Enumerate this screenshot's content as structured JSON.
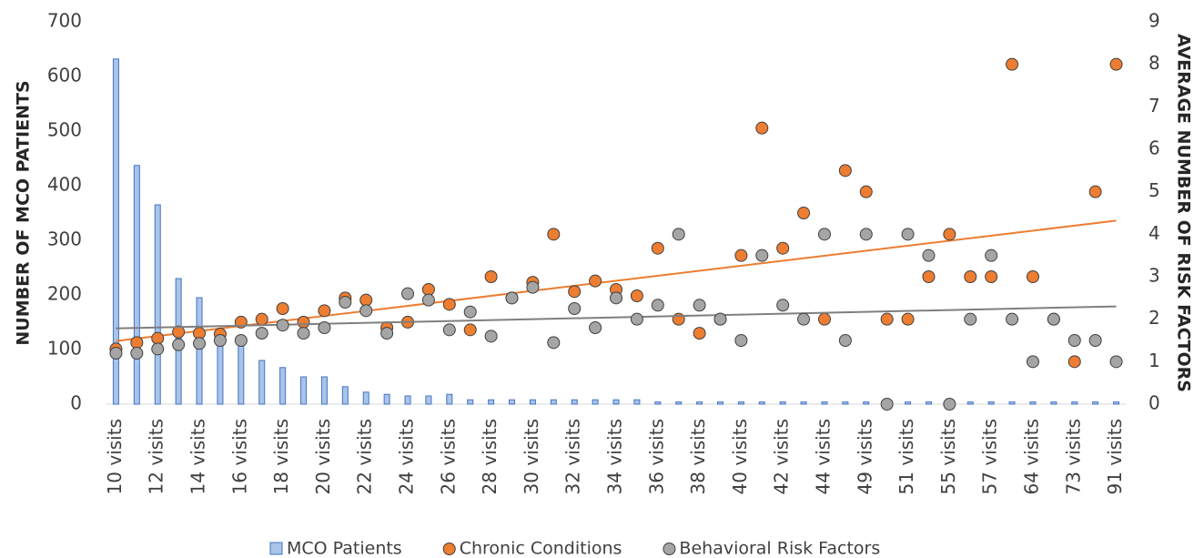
{
  "chart_data": {
    "type": "bar",
    "categories": [
      "10 visits",
      null,
      "12 visits",
      null,
      "14 visits",
      null,
      "16 visits",
      null,
      "18 visits",
      null,
      "20 visits",
      null,
      "22 visits",
      null,
      "24 visits",
      null,
      "26 visits",
      null,
      "28 visits",
      null,
      "30 visits",
      null,
      "32 visits",
      null,
      "34 visits",
      null,
      "36 visits",
      null,
      "38 visits",
      null,
      "40 visits",
      null,
      "42 visits",
      null,
      "44 visits",
      null,
      "49 visits",
      null,
      "51 visits",
      null,
      "55 visits",
      null,
      "57 visits",
      null,
      "64 visits",
      null,
      "73 visits",
      null,
      "91 visits"
    ],
    "y_label": "NUMBER OF MCO PATIENTS",
    "y2_label": "AVERAGE NUMBER OF RISK FACTORS",
    "ylim": [
      0,
      700
    ],
    "yticks": [
      0,
      100,
      200,
      300,
      400,
      500,
      600,
      700
    ],
    "y2lim": [
      0,
      9
    ],
    "y2ticks": [
      0,
      1,
      2,
      3,
      4,
      5,
      6,
      7,
      8,
      9
    ],
    "legend": "bottom",
    "series": [
      {
        "name": "MCO Patients",
        "type": "bar",
        "color": "#4472c4",
        "fill": "#a9c4e8",
        "values": [
          632,
          437,
          365,
          230,
          195,
          125,
          120,
          80,
          67,
          50,
          50,
          32,
          22,
          18,
          15,
          15,
          18,
          8,
          8,
          8,
          8,
          8,
          8,
          8,
          8,
          8,
          4,
          4,
          4,
          4,
          4,
          4,
          4,
          4,
          4,
          4,
          4,
          4,
          4,
          4,
          4,
          4,
          4,
          4,
          4,
          4,
          4,
          4,
          4
        ]
      },
      {
        "name": "Chronic Conditions",
        "type": "scatter",
        "axis": "y2",
        "color": "#ed7d31",
        "trendline": true,
        "values": [
          1.3,
          1.45,
          1.55,
          1.7,
          1.67,
          1.65,
          1.93,
          2.0,
          2.25,
          1.93,
          2.2,
          2.5,
          2.45,
          1.8,
          1.93,
          2.7,
          2.35,
          1.75,
          3.0,
          2.5,
          2.87,
          4.0,
          2.65,
          2.9,
          2.7,
          2.55,
          3.67,
          2.0,
          1.67,
          2.0,
          3.5,
          6.5,
          3.67,
          4.5,
          2.0,
          5.5,
          5.0,
          2.0,
          2.0,
          3.0,
          4.0,
          3.0,
          3.0,
          8.0,
          3.0,
          2.0,
          1.0,
          5.0,
          8.0
        ]
      },
      {
        "name": "Behavioral Risk Factors",
        "type": "scatter",
        "axis": "y2",
        "color": "#a5a5a5",
        "trendline": true,
        "values": [
          1.2,
          1.2,
          1.3,
          1.4,
          1.43,
          1.5,
          1.5,
          1.67,
          1.86,
          1.67,
          1.8,
          2.4,
          2.2,
          1.67,
          2.6,
          2.45,
          1.75,
          2.17,
          1.6,
          2.5,
          2.75,
          1.45,
          2.25,
          1.8,
          2.5,
          2.0,
          2.33,
          4.0,
          2.33,
          2.0,
          1.5,
          3.5,
          2.33,
          2.0,
          4.0,
          1.5,
          4.0,
          0,
          4.0,
          3.5,
          0,
          2.0,
          3.5,
          2.0,
          1.0,
          2.0,
          1.5,
          1.5,
          1.0
        ]
      }
    ]
  }
}
